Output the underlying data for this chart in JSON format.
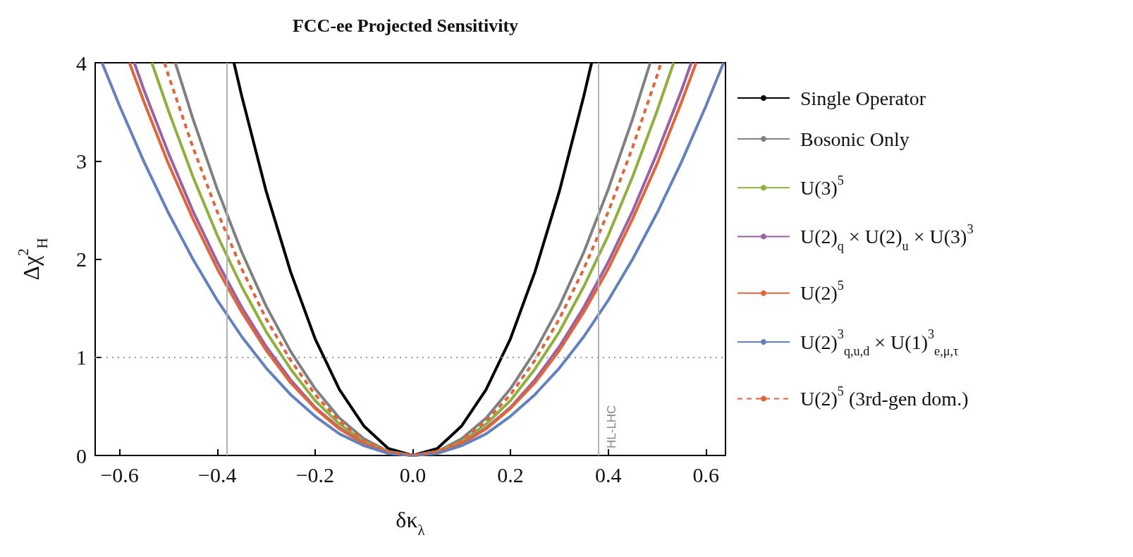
{
  "chart_data": {
    "type": "line",
    "title": "FCC-ee Projected Sensitivity",
    "xlabel": "δκ$_{λ}$",
    "ylabel": "Δχ$^{2}$$_{H}$",
    "xlim": [
      -0.65,
      0.64
    ],
    "ylim": [
      0,
      4
    ],
    "xticks": [
      {
        "value": -0.6,
        "label": "−0.6"
      },
      {
        "value": -0.4,
        "label": "−0.4"
      },
      {
        "value": -0.2,
        "label": "−0.2"
      },
      {
        "value": 0,
        "label": "0.0"
      },
      {
        "value": 0.2,
        "label": "0.2"
      },
      {
        "value": 0.4,
        "label": "0.4"
      },
      {
        "value": 0.6,
        "label": "0.6"
      }
    ],
    "yticks": [
      0,
      1,
      2,
      3,
      4
    ],
    "grid": false,
    "legend": "right",
    "marker": "none",
    "ref_lines": [
      {
        "axis": "x",
        "value": -0.38,
        "label": null,
        "color": "#b3b3b3",
        "line_style": "solid"
      },
      {
        "axis": "x",
        "value": 0.38,
        "label": "HL-LHC",
        "color": "#b3b3b3",
        "line_style": "solid"
      },
      {
        "axis": "y",
        "value": 1,
        "label": null,
        "color": "#999999",
        "line_style": "dotted"
      }
    ],
    "series": [
      {
        "name": "Single Operator",
        "color": "#000000",
        "line_style": "solid",
        "x": [
          -0.366,
          -0.35,
          -0.3,
          -0.25,
          -0.2,
          -0.15,
          -0.1,
          -0.05,
          0,
          0.05,
          0.1,
          0.15,
          0.2,
          0.25,
          0.3,
          0.35,
          0.366
        ],
        "values": [
          4,
          3.66,
          2.69,
          1.87,
          1.19,
          0.67,
          0.3,
          0.07,
          0,
          0.07,
          0.3,
          0.67,
          1.19,
          1.87,
          2.69,
          3.66,
          4
        ]
      },
      {
        "name": "Bosonic Only",
        "color": "#808080",
        "line_style": "solid",
        "x": [
          -0.486,
          -0.45,
          -0.4,
          -0.35,
          -0.3,
          -0.25,
          -0.2,
          -0.15,
          -0.1,
          -0.05,
          0,
          0.05,
          0.1,
          0.15,
          0.2,
          0.25,
          0.3,
          0.35,
          0.4,
          0.45,
          0.486
        ],
        "values": [
          4,
          3.43,
          2.71,
          2.07,
          1.52,
          1.06,
          0.68,
          0.38,
          0.17,
          0.04,
          0,
          0.04,
          0.17,
          0.38,
          0.68,
          1.06,
          1.52,
          2.07,
          2.71,
          3.43,
          4
        ]
      },
      {
        "name": "U(3)$^{5}$",
        "color": "#8fb03e",
        "line_style": "solid",
        "x": [
          -0.534,
          -0.5,
          -0.45,
          -0.4,
          -0.35,
          -0.3,
          -0.25,
          -0.2,
          -0.15,
          -0.1,
          -0.05,
          0,
          0.05,
          0.1,
          0.15,
          0.2,
          0.25,
          0.3,
          0.35,
          0.4,
          0.45,
          0.5,
          0.534
        ],
        "values": [
          4,
          3.51,
          2.84,
          2.24,
          1.72,
          1.26,
          0.88,
          0.56,
          0.32,
          0.14,
          0.04,
          0,
          0.04,
          0.14,
          0.32,
          0.56,
          0.88,
          1.26,
          1.72,
          2.24,
          2.84,
          3.51,
          4
        ]
      },
      {
        "name": "U(2)$_{q}$ × U(2)$_{u}$ × U(3)$^{3}$",
        "color": "#9a62a2",
        "line_style": "solid",
        "x": [
          -0.57,
          -0.55,
          -0.5,
          -0.45,
          -0.4,
          -0.35,
          -0.3,
          -0.25,
          -0.2,
          -0.15,
          -0.1,
          -0.05,
          0,
          0.05,
          0.1,
          0.15,
          0.2,
          0.25,
          0.3,
          0.35,
          0.4,
          0.45,
          0.5,
          0.55,
          0.57
        ],
        "values": [
          4,
          3.72,
          3.08,
          2.49,
          1.97,
          1.51,
          1.11,
          0.77,
          0.49,
          0.28,
          0.12,
          0.03,
          0,
          0.03,
          0.12,
          0.28,
          0.49,
          0.77,
          1.11,
          1.51,
          1.97,
          2.49,
          3.08,
          3.72,
          4
        ]
      },
      {
        "name": "U(2)$^{5}$",
        "color": "#e0653a",
        "line_style": "solid",
        "x": [
          -0.58,
          -0.55,
          -0.5,
          -0.45,
          -0.4,
          -0.35,
          -0.3,
          -0.25,
          -0.2,
          -0.15,
          -0.1,
          -0.05,
          0,
          0.05,
          0.1,
          0.15,
          0.2,
          0.25,
          0.3,
          0.35,
          0.4,
          0.45,
          0.5,
          0.55,
          0.58
        ],
        "values": [
          4,
          3.6,
          2.97,
          2.41,
          1.9,
          1.46,
          1.07,
          0.74,
          0.48,
          0.27,
          0.12,
          0.03,
          0,
          0.03,
          0.12,
          0.27,
          0.48,
          0.74,
          1.07,
          1.46,
          1.9,
          2.41,
          2.97,
          3.6,
          4
        ]
      },
      {
        "name": "U(2)$^{3}$$_{q,u,d}$ × U(1)$^{3}$$_{e,μ,τ}$",
        "color": "#6381bd",
        "line_style": "solid",
        "x": [
          -0.636,
          -0.6,
          -0.55,
          -0.5,
          -0.45,
          -0.4,
          -0.35,
          -0.3,
          -0.25,
          -0.2,
          -0.15,
          -0.1,
          -0.05,
          0,
          0.05,
          0.1,
          0.15,
          0.2,
          0.25,
          0.3,
          0.35,
          0.4,
          0.45,
          0.5,
          0.55,
          0.6,
          0.636
        ],
        "values": [
          4,
          3.56,
          2.99,
          2.47,
          2,
          1.58,
          1.21,
          0.89,
          0.62,
          0.4,
          0.22,
          0.1,
          0.02,
          0,
          0.02,
          0.1,
          0.22,
          0.4,
          0.62,
          0.89,
          1.21,
          1.58,
          2,
          2.47,
          2.99,
          3.56,
          4
        ]
      },
      {
        "name": "U(2)$^{5}$ (3rd-gen dom.)",
        "color": "#e0653a",
        "line_style": "dashed",
        "x": [
          -0.508,
          -0.5,
          -0.45,
          -0.4,
          -0.35,
          -0.3,
          -0.25,
          -0.2,
          -0.15,
          -0.1,
          -0.05,
          0,
          0.05,
          0.1,
          0.15,
          0.2,
          0.25,
          0.3,
          0.35,
          0.4,
          0.45,
          0.5,
          0.508
        ],
        "values": [
          4,
          3.87,
          3.14,
          2.48,
          1.9,
          1.39,
          0.97,
          0.62,
          0.35,
          0.15,
          0.04,
          0,
          0.04,
          0.15,
          0.35,
          0.62,
          0.97,
          1.39,
          1.9,
          2.48,
          3.14,
          3.87,
          4
        ]
      }
    ]
  }
}
